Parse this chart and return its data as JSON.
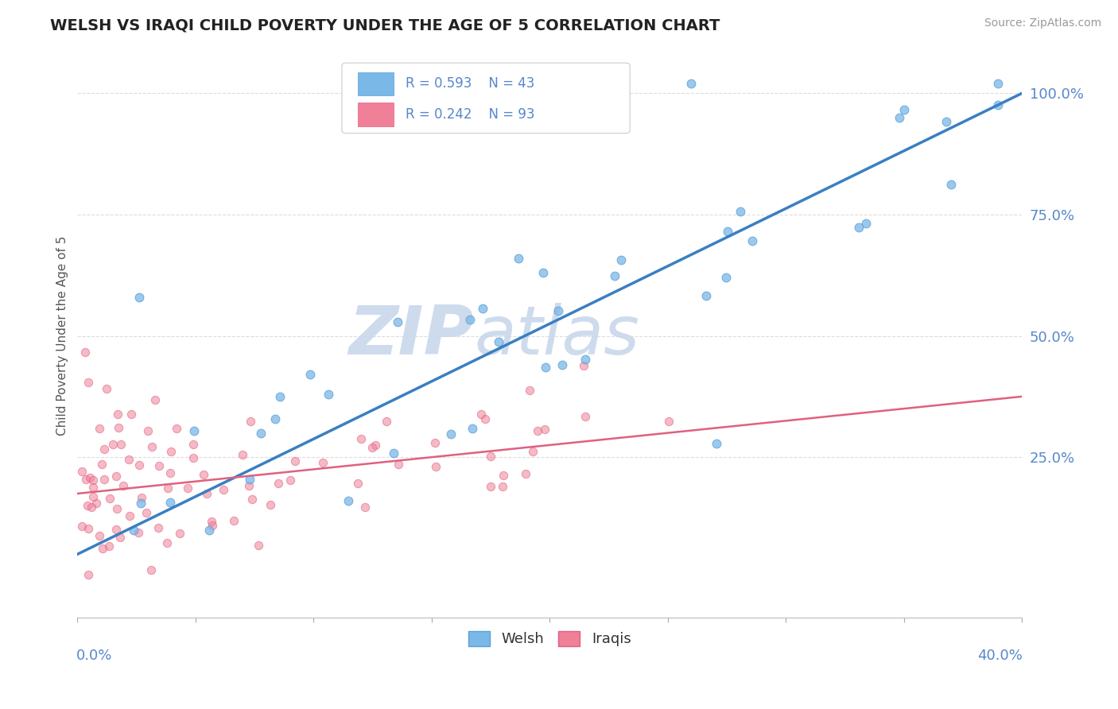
{
  "title": "WELSH VS IRAQI CHILD POVERTY UNDER THE AGE OF 5 CORRELATION CHART",
  "source": "Source: ZipAtlas.com",
  "ylabel": "Child Poverty Under the Age of 5",
  "xlim": [
    0.0,
    0.4
  ],
  "ylim": [
    -0.08,
    1.08
  ],
  "yticks": [
    0.0,
    0.25,
    0.5,
    0.75,
    1.0
  ],
  "ytick_labels": [
    "",
    "25.0%",
    "50.0%",
    "75.0%",
    "100.0%"
  ],
  "xticks": [
    0.0,
    0.05,
    0.1,
    0.15,
    0.2,
    0.25,
    0.3,
    0.35,
    0.4
  ],
  "legend_welsh": "Welsh",
  "legend_iraqis": "Iraqis",
  "R_welsh": "R = 0.593",
  "N_welsh": "N = 43",
  "R_iraqis": "R = 0.242",
  "N_iraqis": "N = 93",
  "welsh_color": "#7ab8e8",
  "welsh_edge_color": "#5a9fd4",
  "iraqi_color": "#f08098",
  "iraqi_edge_color": "#e06080",
  "welsh_line_color": "#3a7fc1",
  "iraqi_line_color": "#e06080",
  "watermark_color": "#c8d8ec",
  "background_color": "#ffffff",
  "grid_color": "#dddddd",
  "axis_label_color": "#5588cc",
  "title_color": "#222222",
  "welsh_line_y0": 0.05,
  "welsh_line_y1": 1.0,
  "iraqi_line_y0": 0.175,
  "iraqi_line_y1": 0.375,
  "seed": 17
}
